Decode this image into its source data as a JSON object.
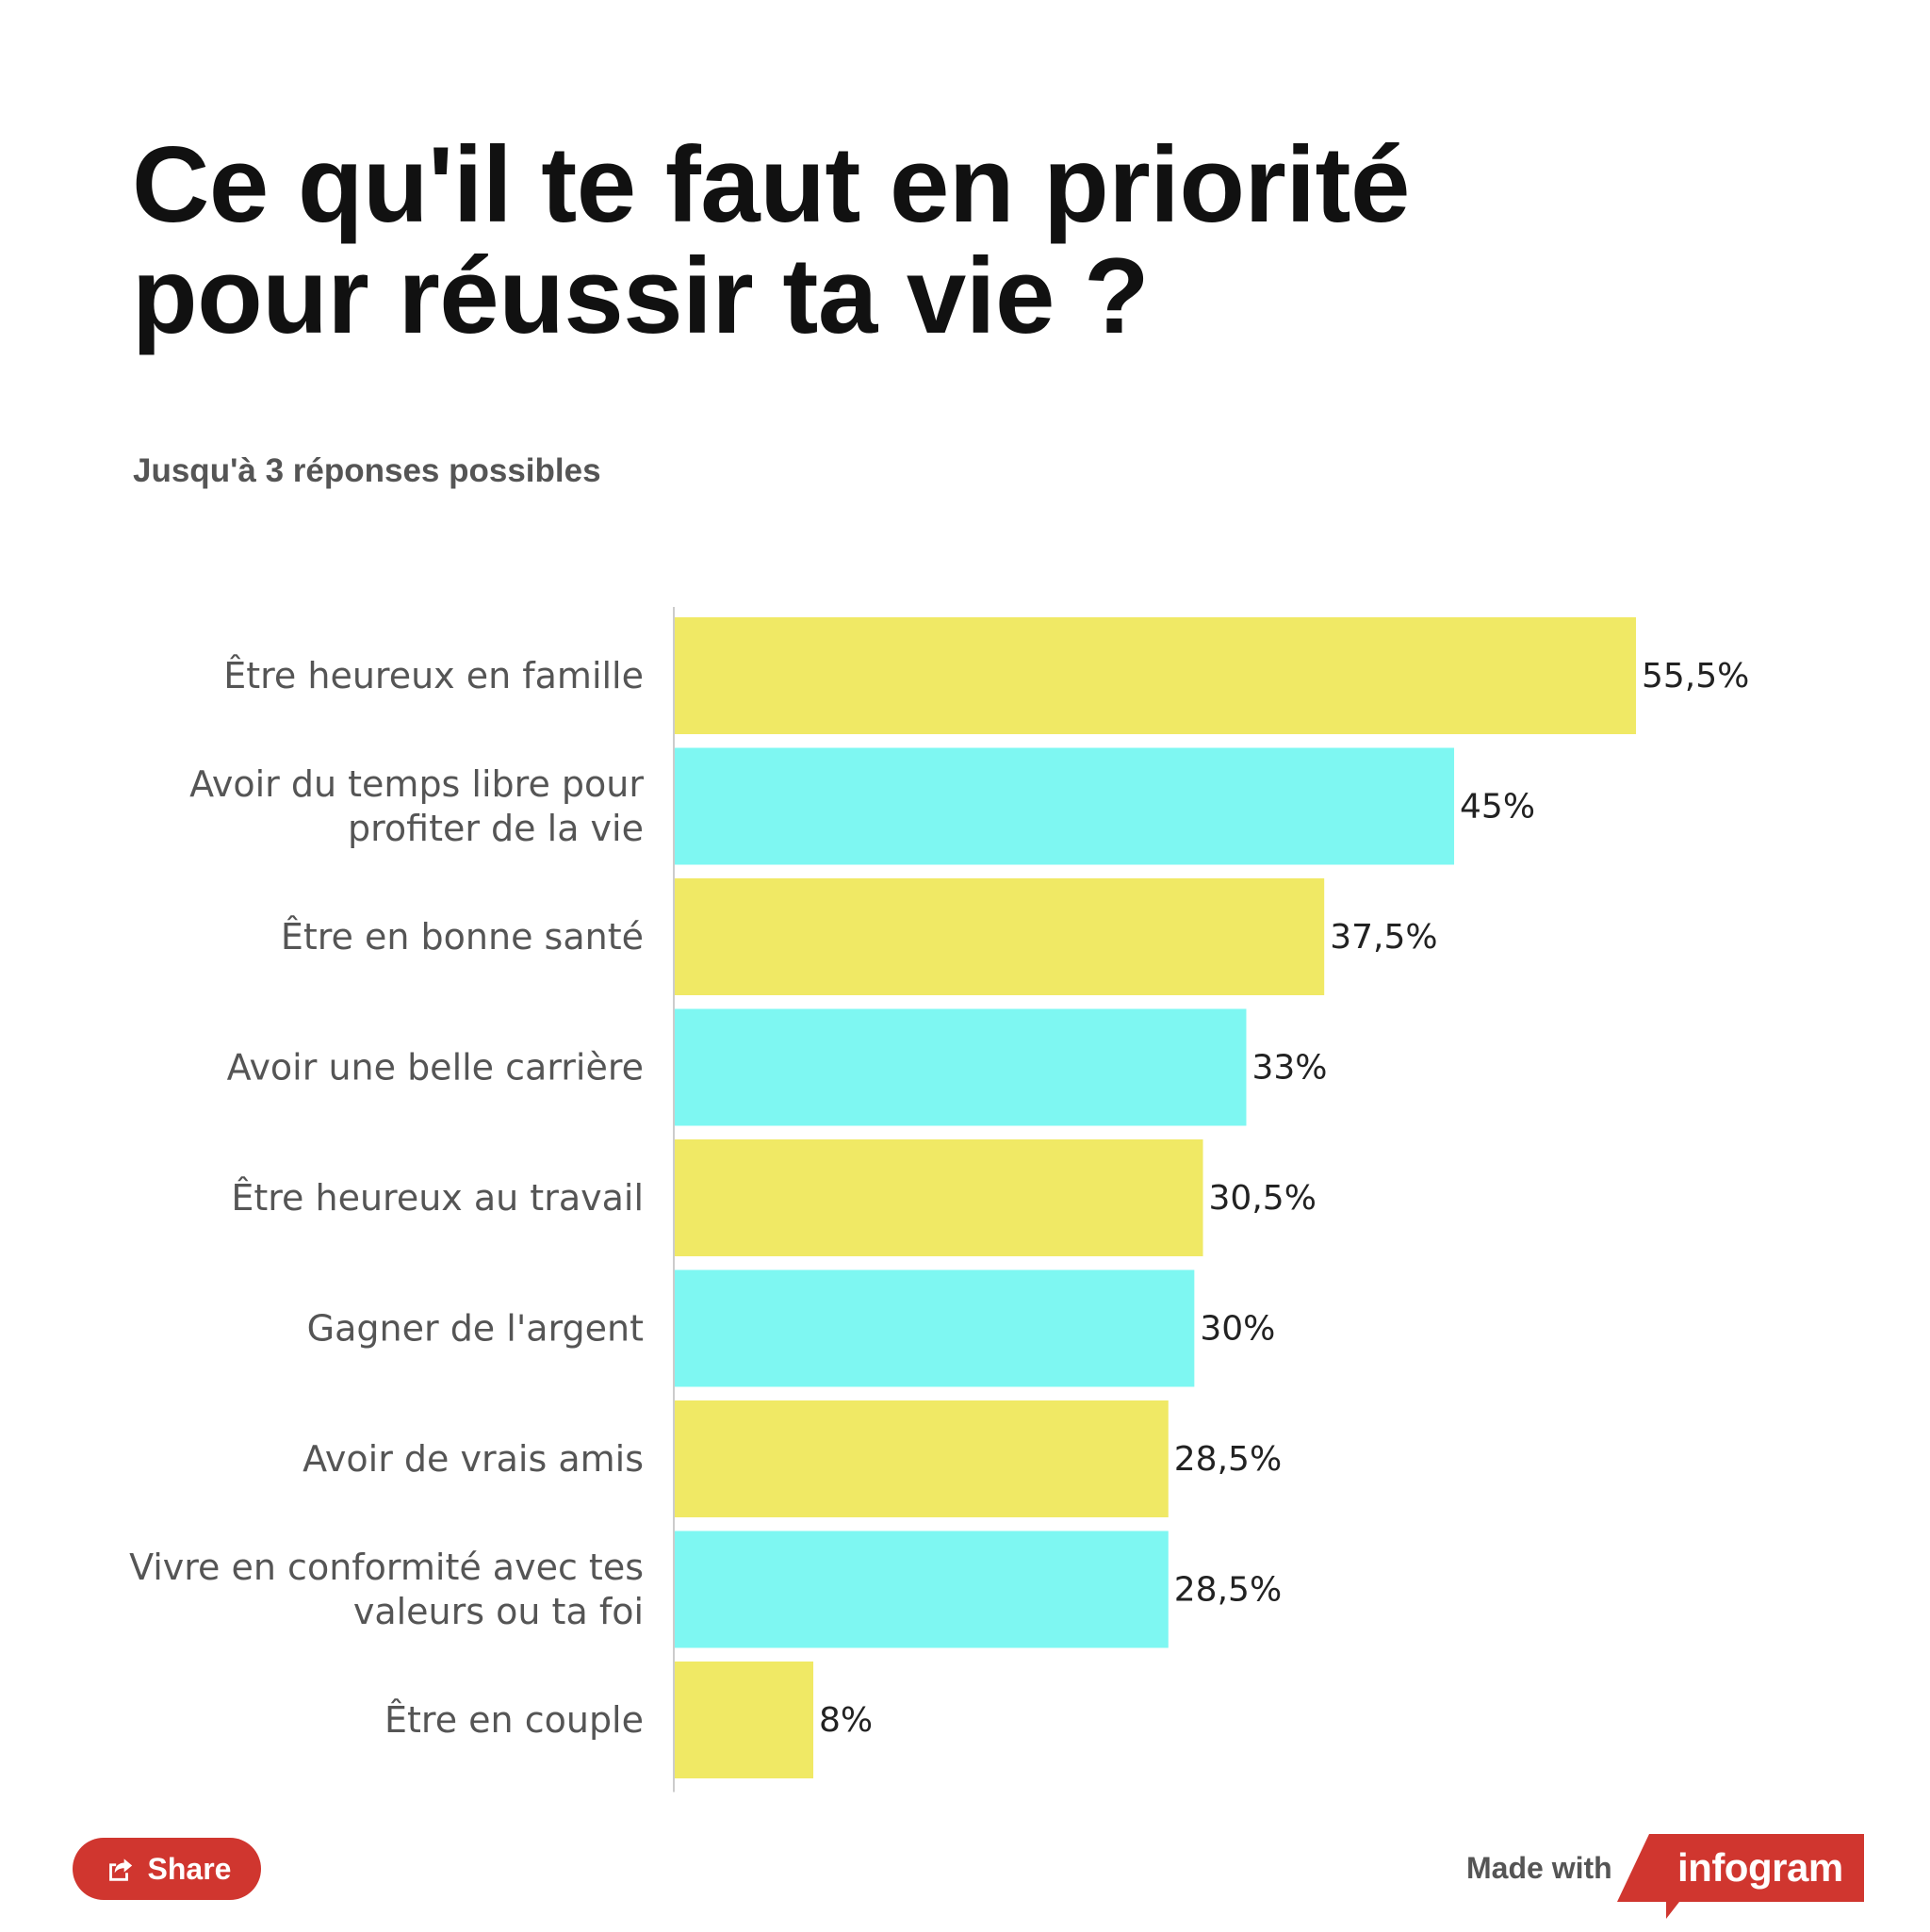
{
  "header": {
    "title": "Ce qu'il te faut en priorité pour réussir ta vie ?",
    "subtitle": "Jusqu'à 3 réponses possibles"
  },
  "chart_data": {
    "type": "bar",
    "orientation": "horizontal",
    "categories": [
      [
        "Être heureux en famille"
      ],
      [
        "Avoir du temps libre pour",
        "profiter de la vie"
      ],
      [
        "Être en bonne santé"
      ],
      [
        "Avoir une belle carrière"
      ],
      [
        "Être heureux au travail"
      ],
      [
        "Gagner de l'argent"
      ],
      [
        "Avoir de vrais amis"
      ],
      [
        "Vivre en conformité avec tes",
        "valeurs ou ta foi"
      ],
      [
        "Être en couple"
      ]
    ],
    "values": [
      55.5,
      45,
      37.5,
      33,
      30.5,
      30,
      28.5,
      28.5,
      8
    ],
    "value_labels": [
      "55,5%",
      "45%",
      "37,5%",
      "33%",
      "30,5%",
      "30%",
      "28,5%",
      "28,5%",
      "8%"
    ],
    "bar_colors": [
      "#f0e965",
      "#7ef7f2",
      "#f0e965",
      "#7ef7f2",
      "#f0e965",
      "#7ef7f2",
      "#f0e965",
      "#7ef7f2",
      "#f0e965"
    ],
    "unit": "%",
    "grid": false,
    "legend": "none"
  },
  "footer": {
    "share_label": "Share",
    "share_icon": "share-icon",
    "made_with_label": "Made with",
    "brand_name": "infogram",
    "brand_color": "#d0362f"
  }
}
